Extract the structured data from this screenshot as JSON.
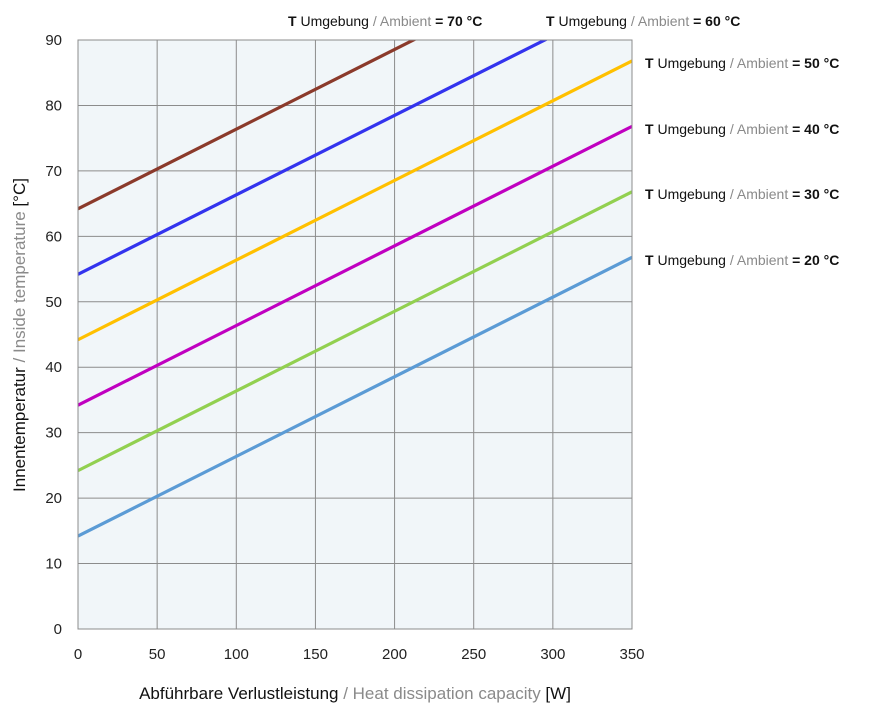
{
  "chart_data": {
    "type": "line",
    "x_axis": {
      "label_de": "Abführbare Verlustleistung",
      "label_sep": " / ",
      "label_en": "Heat dissipation capacity",
      "unit": " [W]",
      "range": [
        0,
        350
      ],
      "ticks": [
        "0",
        "50",
        "100",
        "150",
        "200",
        "250",
        "300",
        "350"
      ]
    },
    "y_axis": {
      "label_de": "Innentemperatur",
      "label_sep": " / ",
      "label_en": "Inside temperature",
      "unit": " [°C]",
      "range": [
        0,
        90
      ],
      "ticks": [
        "0",
        "10",
        "20",
        "30",
        "40",
        "50",
        "60",
        "70",
        "80",
        "90"
      ]
    },
    "grid": true,
    "plot_background": "#f1f6f9",
    "series": [
      {
        "name": "T Umgebung / Ambient = 20 °C",
        "label": {
          "t": "T",
          "de": " Umgebung",
          "sep": " / ",
          "en": "Ambient",
          "val": " = 20 °C"
        },
        "color": "#5b9bd5",
        "x": [
          0,
          350
        ],
        "y": [
          14.2,
          56.8
        ]
      },
      {
        "name": "T Umgebung / Ambient = 30 °C",
        "label": {
          "t": "T",
          "de": " Umgebung",
          "sep": " / ",
          "en": "Ambient",
          "val": " = 30 °C"
        },
        "color": "#92d050",
        "x": [
          0,
          350
        ],
        "y": [
          24.2,
          66.8
        ]
      },
      {
        "name": "T Umgebung / Ambient = 40 °C",
        "label": {
          "t": "T",
          "de": " Umgebung",
          "sep": " / ",
          "en": "Ambient",
          "val": " = 40 °C"
        },
        "color": "#c000c0",
        "x": [
          0,
          350
        ],
        "y": [
          34.2,
          76.8
        ]
      },
      {
        "name": "T Umgebung / Ambient = 50 °C",
        "label": {
          "t": "T",
          "de": " Umgebung",
          "sep": " / ",
          "en": "Ambient",
          "val": " = 50 °C"
        },
        "color": "#ffc000",
        "x": [
          0,
          350
        ],
        "y": [
          44.2,
          86.8
        ]
      },
      {
        "name": "T Umgebung / Ambient = 60 °C",
        "label": {
          "t": "T",
          "de": " Umgebung",
          "sep": " / ",
          "en": "Ambient",
          "val": " = 60 °C"
        },
        "color": "#3333ee",
        "x": [
          0,
          299
        ],
        "y": [
          54.2,
          90.5
        ]
      },
      {
        "name": "T Umgebung / Ambient = 70 °C",
        "label": {
          "t": "T",
          "de": " Umgebung",
          "sep": " / ",
          "en": "Ambient",
          "val": " = 70 °C"
        },
        "color": "#8b3a2b",
        "x": [
          0,
          216
        ],
        "y": [
          64.2,
          90.5
        ]
      }
    ]
  }
}
